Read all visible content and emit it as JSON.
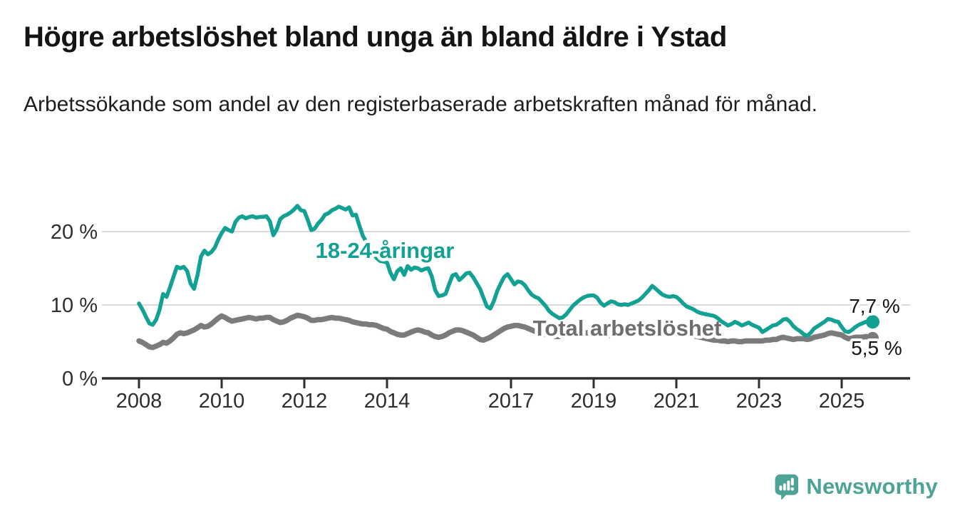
{
  "header": {
    "title": "Högre arbetslöshet bland unga än bland äldre i Ystad",
    "subtitle": "Arbetssökande som andel av den registerbaserade arbetskraften månad för månad."
  },
  "branding": {
    "logo_text": "Newsworthy",
    "logo_color": "#4CA396",
    "logo_icon": "bar-chart-speech-bubble"
  },
  "colors": {
    "youth_line": "#12A193",
    "total_line": "#7B7B7B",
    "total_label_text": "#6E6E6E",
    "gridline": "#DBDBDB",
    "axis": "#2E2E2E",
    "tick_text": "#2E2E2E",
    "value_label_text": "#141414",
    "background": "#FFFFFF"
  },
  "chart_data": {
    "type": "line",
    "title": "Högre arbetslöshet bland unga än bland äldre i Ystad",
    "subtitle": "Arbetssökande som andel av den registerbaserade arbetskraften månad för månad.",
    "x_unit": "month",
    "x_start_year": 2008,
    "x_end_label_year": "2025 (oktober)",
    "x_ticks": [
      2008,
      2010,
      2012,
      2014,
      2017,
      2019,
      2021,
      2023,
      2025
    ],
    "y_ticks": [
      {
        "value": 0,
        "label": "0 %"
      },
      {
        "value": 10,
        "label": "10 %"
      },
      {
        "value": 20,
        "label": "20 %"
      }
    ],
    "ylim": [
      0,
      25
    ],
    "grid": "horizontal-only",
    "legend_position": "inline-labels",
    "series": [
      {
        "name": "18-24-åringar",
        "end_label": "7,7 %",
        "end_value": 7.7,
        "values": [
          10.2,
          9.4,
          8.4,
          7.5,
          7.3,
          8.0,
          9.4,
          11.5,
          11.1,
          12.4,
          13.8,
          15.2,
          15.0,
          15.2,
          14.6,
          12.9,
          12.2,
          14.1,
          16.6,
          17.4,
          16.9,
          17.2,
          17.8,
          18.9,
          19.8,
          20.5,
          20.2,
          20.0,
          21.3,
          21.9,
          22.1,
          21.8,
          22.0,
          22.1,
          21.9,
          22.0,
          22.0,
          22.1,
          21.4,
          19.5,
          20.3,
          21.7,
          22.1,
          22.3,
          22.6,
          23.0,
          23.5,
          22.9,
          22.8,
          21.6,
          20.2,
          20.4,
          21.1,
          21.6,
          22.3,
          22.5,
          22.9,
          23.1,
          23.4,
          23.2,
          23.0,
          23.3,
          22.2,
          22.3,
          20.8,
          19.4,
          18.6,
          17.8,
          17.0,
          16.4,
          16.0,
          15.9,
          15.8,
          14.4,
          13.5,
          14.6,
          15.0,
          14.1,
          15.3,
          14.8,
          15.1,
          15.0,
          14.7,
          14.9,
          15.0,
          13.9,
          12.0,
          11.2,
          11.3,
          11.5,
          12.8,
          14.0,
          14.2,
          13.4,
          13.8,
          14.3,
          14.4,
          13.8,
          13.0,
          12.2,
          11.0,
          9.8,
          9.5,
          10.5,
          11.9,
          12.9,
          13.8,
          14.2,
          13.5,
          12.8,
          13.2,
          13.1,
          12.7,
          12.0,
          11.4,
          11.1,
          10.9,
          10.4,
          9.9,
          9.2,
          8.8,
          8.5,
          8.2,
          8.3,
          8.7,
          9.3,
          9.9,
          10.3,
          10.7,
          11.0,
          11.2,
          11.3,
          11.3,
          11.0,
          10.3,
          9.9,
          10.2,
          10.5,
          10.4,
          10.1,
          10.0,
          10.1,
          10.0,
          10.2,
          10.4,
          10.6,
          11.0,
          11.5,
          12.0,
          12.6,
          12.2,
          11.8,
          11.4,
          11.2,
          11.1,
          11.2,
          11.1,
          10.7,
          10.2,
          9.8,
          9.6,
          9.4,
          9.1,
          8.9,
          8.8,
          8.7,
          8.6,
          8.5,
          8.2,
          7.8,
          7.5,
          7.2,
          7.4,
          7.7,
          7.5,
          7.2,
          7.4,
          7.6,
          7.3,
          7.1,
          6.9,
          6.3,
          6.6,
          6.9,
          7.2,
          7.3,
          7.6,
          8.0,
          8.1,
          7.7,
          7.1,
          6.7,
          6.4,
          6.0,
          5.8,
          6.2,
          6.8,
          7.1,
          7.4,
          7.7,
          8.1,
          8.0,
          7.8,
          7.7,
          7.0,
          6.4,
          6.3,
          6.6,
          7.0,
          7.3,
          7.5,
          7.7,
          7.8,
          7.7
        ]
      },
      {
        "name": "Total arbetslöshet",
        "end_label": "5,5 %",
        "end_value": 5.5,
        "values": [
          5.1,
          4.9,
          4.6,
          4.3,
          4.2,
          4.4,
          4.6,
          4.9,
          4.8,
          5.1,
          5.5,
          6.0,
          6.2,
          6.1,
          6.2,
          6.4,
          6.6,
          6.9,
          7.2,
          7.0,
          7.1,
          7.4,
          7.8,
          8.2,
          8.5,
          8.3,
          8.0,
          7.8,
          7.9,
          8.0,
          8.1,
          8.2,
          8.3,
          8.2,
          8.1,
          8.2,
          8.2,
          8.3,
          8.3,
          8.0,
          7.8,
          7.6,
          7.7,
          7.9,
          8.2,
          8.4,
          8.6,
          8.5,
          8.4,
          8.2,
          7.9,
          7.9,
          8.0,
          8.0,
          8.1,
          8.2,
          8.3,
          8.2,
          8.2,
          8.1,
          8.0,
          7.9,
          7.7,
          7.6,
          7.5,
          7.4,
          7.4,
          7.3,
          7.3,
          7.2,
          7.0,
          6.8,
          6.7,
          6.4,
          6.2,
          6.0,
          5.9,
          5.9,
          6.1,
          6.3,
          6.5,
          6.6,
          6.5,
          6.3,
          6.2,
          5.9,
          5.7,
          5.6,
          5.7,
          5.9,
          6.2,
          6.4,
          6.6,
          6.6,
          6.5,
          6.3,
          6.1,
          5.9,
          5.6,
          5.3,
          5.2,
          5.4,
          5.6,
          5.9,
          6.2,
          6.5,
          6.8,
          7.0,
          7.1,
          7.2,
          7.2,
          7.1,
          7.0,
          6.8,
          6.6,
          6.4,
          6.3,
          6.2,
          6.0,
          5.9,
          5.8,
          5.7,
          5.7,
          5.8,
          5.9,
          6.0,
          6.0,
          6.1,
          6.1,
          6.2,
          6.2,
          6.2,
          6.1,
          6.0,
          5.9,
          5.8,
          5.8,
          5.9,
          5.9,
          6.0,
          6.0,
          6.1,
          6.1,
          6.2,
          6.3,
          6.4,
          6.7,
          7.0,
          7.2,
          7.2,
          7.1,
          7.0,
          6.9,
          6.8,
          6.8,
          6.7,
          6.6,
          6.5,
          6.3,
          6.1,
          6.0,
          5.8,
          5.7,
          5.6,
          5.5,
          5.4,
          5.3,
          5.2,
          5.2,
          5.1,
          5.1,
          5.0,
          5.1,
          5.1,
          5.0,
          5.0,
          5.1,
          5.1,
          5.1,
          5.1,
          5.1,
          5.1,
          5.2,
          5.2,
          5.3,
          5.3,
          5.5,
          5.6,
          5.5,
          5.4,
          5.3,
          5.4,
          5.4,
          5.4,
          5.3,
          5.4,
          5.6,
          5.7,
          5.8,
          5.9,
          6.1,
          6.2,
          6.1,
          6.0,
          5.9,
          5.6,
          5.4,
          5.5,
          5.6,
          5.6,
          5.6,
          5.7,
          5.6,
          5.5
        ]
      }
    ]
  }
}
